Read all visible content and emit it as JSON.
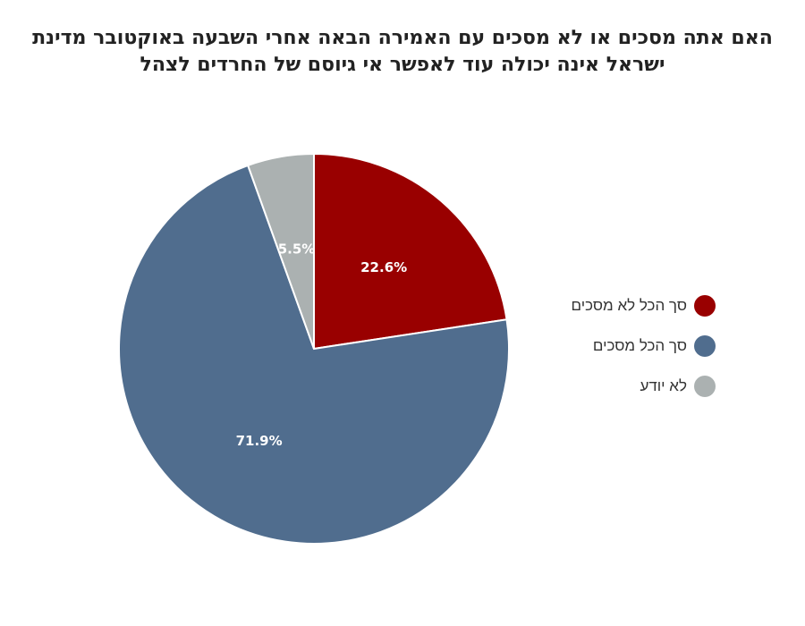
{
  "title": {
    "line1": "האם אתה מסכים או לא מסכים עם האמירה הבאה אחרי השבעה באוקטובר מדינת",
    "line2": "ישראל אינה יכולה עוד לאפשר אי גיוסם של החרדים לצהל"
  },
  "chart_data": {
    "type": "pie",
    "title": "האם אתה מסכים או לא מסכים עם האמירה הבאה אחרי השבעה באוקטובר מדינת ישראל אינה יכולה עוד לאפשר אי גיוסם של החרדים לצהל",
    "legend_position": "right",
    "slices": [
      {
        "label": "סך הכל לא מסכים",
        "value": 22.6,
        "display": "22.6%",
        "color": "#990000"
      },
      {
        "label": "סך הכל מסכים",
        "value": 71.9,
        "display": "71.9%",
        "color": "#506d8e"
      },
      {
        "label": "לא יודע",
        "value": 5.5,
        "display": "5.5%",
        "color": "#abb1b1"
      }
    ]
  }
}
